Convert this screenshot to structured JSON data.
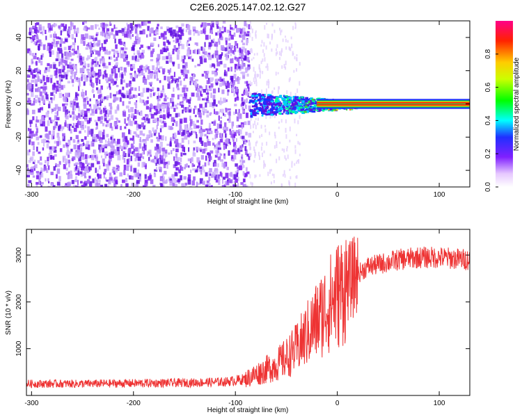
{
  "title": "C2E6.2025.147.02.12.G27",
  "chart_data": [
    {
      "type": "heatmap",
      "xlabel": "Height of straight line (km)",
      "ylabel": "Frequency (Hz)",
      "xlim": [
        -305,
        130
      ],
      "ylim": [
        -50,
        50
      ],
      "xticks": [
        -300,
        -200,
        -100,
        0,
        100
      ],
      "yticks": [
        -40,
        -20,
        0,
        20,
        40
      ],
      "colorbar": {
        "label": "Normalized spectral amplitude",
        "range": [
          0,
          1
        ],
        "ticks": [
          0.0,
          0.2,
          0.4,
          0.6,
          0.8
        ]
      },
      "regions": [
        {
          "x_range": [
            -305,
            -87
          ],
          "description": "broadband noise, amplitude ~0.1-0.2"
        },
        {
          "x_range": [
            -87,
            20
          ],
          "description": "signal band near 0 Hz, amplitude up to ~0.9"
        },
        {
          "x_range": [
            20,
            130
          ],
          "description": "narrow line at 0 Hz, amplitude ~1.0"
        }
      ],
      "line_center_hz": 0
    },
    {
      "type": "line",
      "xlabel": "Height of straight line (km)",
      "ylabel": "SNR (10 * v/v)",
      "xlim": [
        -305,
        130
      ],
      "ylim": [
        0,
        3550
      ],
      "xticks": [
        -300,
        -200,
        -100,
        0,
        100
      ],
      "yticks": [
        1000,
        2000,
        3000
      ],
      "color": "#ee3333",
      "series": [
        {
          "x": [
            -305,
            -250,
            -200,
            -150,
            -110,
            -90,
            -80,
            -70,
            -60,
            -50,
            -40,
            -30,
            -20,
            -10,
            0,
            10,
            20,
            30,
            40,
            50,
            60,
            80,
            100,
            130
          ],
          "values": [
            250,
            250,
            260,
            270,
            290,
            350,
            450,
            550,
            650,
            800,
            1000,
            1300,
            1600,
            1900,
            2150,
            2400,
            2600,
            2750,
            2800,
            2850,
            2900,
            2950,
            2950,
            2900
          ]
        }
      ]
    }
  ]
}
